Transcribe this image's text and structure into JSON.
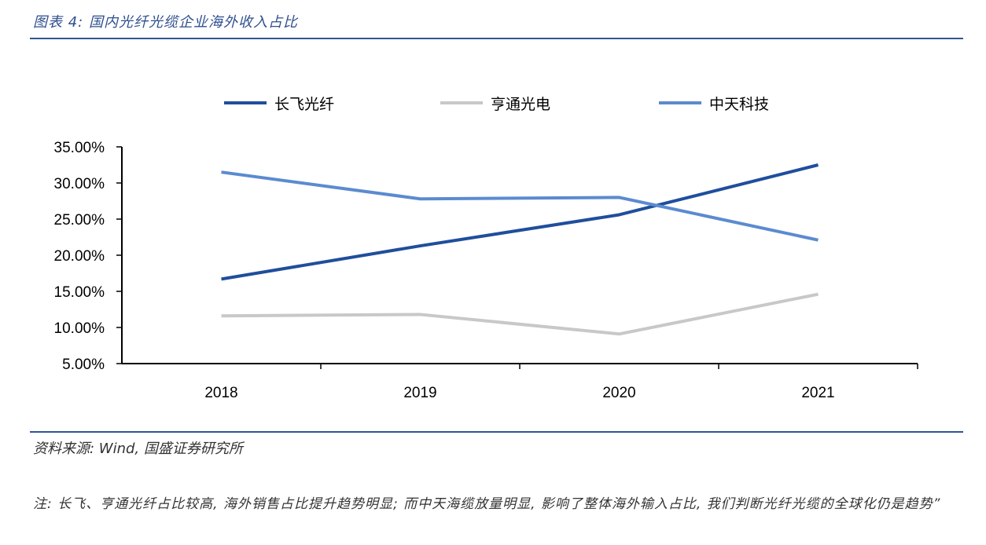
{
  "header": {
    "title": "图表 4:  国内光纤光缆企业海外收入占比"
  },
  "footer": {
    "source": "资料来源: Wind, 国盛证券研究所",
    "note": "注: 长飞、亨通光纤占比较高, 海外销售占比提升趋势明显; 而中天海缆放量明显, 影响了整体海外输入占比, 我们判断光纤光缆的全球化仍是趋势”"
  },
  "chart_data": {
    "type": "line",
    "title": "",
    "xlabel": "",
    "ylabel": "",
    "categories": [
      "2018",
      "2019",
      "2020",
      "2021"
    ],
    "ylim": [
      5,
      35
    ],
    "yticks": [
      "5.00%",
      "10.00%",
      "15.00%",
      "20.00%",
      "25.00%",
      "30.00%",
      "35.00%"
    ],
    "ytick_values": [
      5,
      10,
      15,
      20,
      25,
      30,
      35
    ],
    "grid": false,
    "legend_position": "top",
    "series": [
      {
        "name": "长飞光纤",
        "color": "#1f4e9c",
        "values": [
          16.7,
          21.3,
          25.6,
          32.5
        ]
      },
      {
        "name": "亨通光电",
        "color": "#c8c8c8",
        "values": [
          11.6,
          11.8,
          9.1,
          14.6
        ]
      },
      {
        "name": "中天科技",
        "color": "#5b8bd0",
        "values": [
          31.5,
          27.8,
          28.0,
          22.1
        ]
      }
    ]
  }
}
